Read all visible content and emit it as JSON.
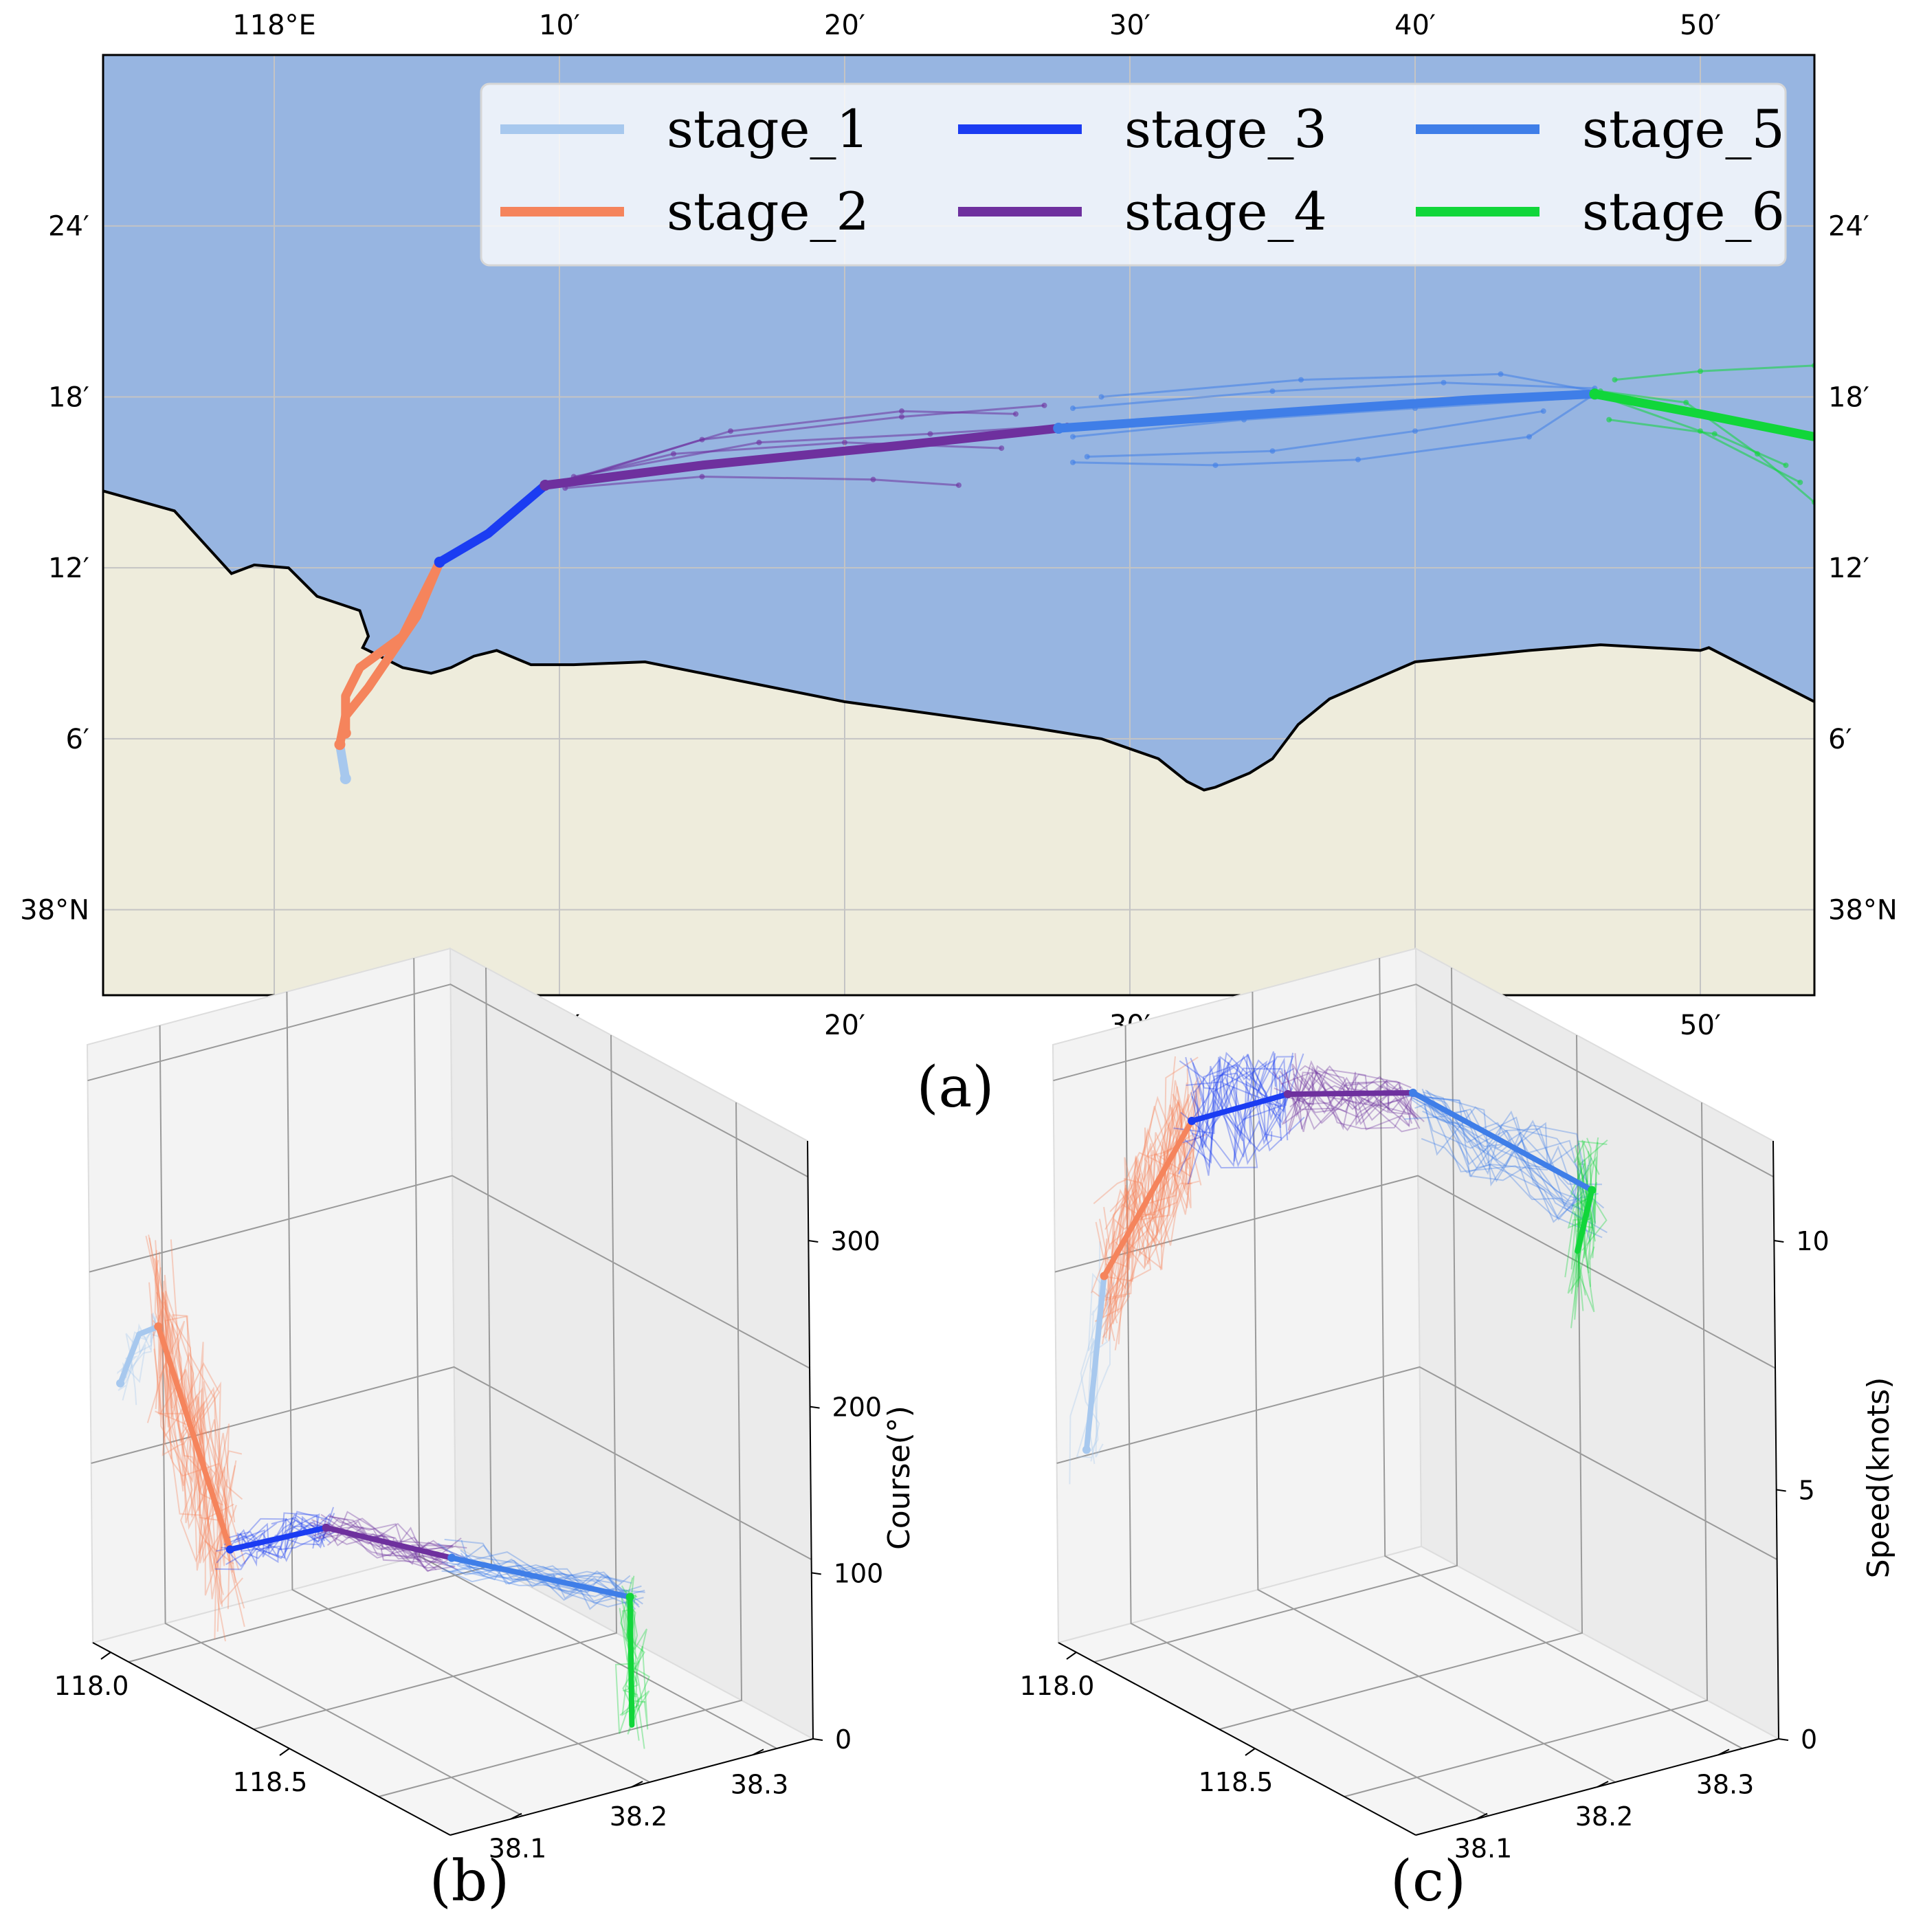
{
  "panels": {
    "a": {
      "caption": "(a)"
    },
    "b": {
      "caption": "(b)"
    },
    "c": {
      "caption": "(c)"
    }
  },
  "colors": {
    "stage_1": "#a7c8ee",
    "stage_2": "#f5845c",
    "stage_3": "#1b3cf2",
    "stage_4": "#6e309e",
    "stage_5": "#3f7ee8",
    "stage_6": "#11d63a",
    "sea": "#97b5e1",
    "land": "#eeecdc",
    "coast": "#000000"
  },
  "chart_data": [
    {
      "type": "line",
      "panel": "a",
      "kind": "map",
      "x_ticks_top": [
        "118°E",
        "10′",
        "20′",
        "30′",
        "40′",
        "50′"
      ],
      "x_ticks_bottom": [
        "118°E",
        "10′",
        "20′",
        "30′",
        "40′",
        "50′"
      ],
      "y_ticks_left": [
        "24′",
        "18′",
        "12′",
        "6′",
        "38°N"
      ],
      "y_ticks_right": [
        "24′",
        "18′",
        "12′",
        "6′",
        "38°N"
      ],
      "x_tick_values": [
        0,
        10,
        20,
        30,
        40,
        50
      ],
      "y_tick_values": [
        24,
        18,
        12,
        6,
        0
      ],
      "xlim": [
        -6.0,
        54.0
      ],
      "ylim": [
        -3.0,
        30.0
      ],
      "units": "arc-minutes east of 118°E / north of 38°N",
      "legend": {
        "placement": "top-right",
        "entries": [
          "stage_1",
          "stage_2",
          "stage_3",
          "stage_4",
          "stage_5",
          "stage_6"
        ]
      },
      "coastline": [
        [
          -6.0,
          14.7
        ],
        [
          -3.5,
          14.0
        ],
        [
          -1.5,
          11.8
        ],
        [
          -0.7,
          12.1
        ],
        [
          0.5,
          12.0
        ],
        [
          1.5,
          11.0
        ],
        [
          3.0,
          10.5
        ],
        [
          3.3,
          9.6
        ],
        [
          3.1,
          9.2
        ],
        [
          4.5,
          8.5
        ],
        [
          5.5,
          8.3
        ],
        [
          6.2,
          8.5
        ],
        [
          7.0,
          8.9
        ],
        [
          7.8,
          9.1
        ],
        [
          9.0,
          8.6
        ],
        [
          10.5,
          8.6
        ],
        [
          13.0,
          8.7
        ],
        [
          20.0,
          7.3
        ],
        [
          26.5,
          6.4
        ],
        [
          29.0,
          6.0
        ],
        [
          31.0,
          5.3
        ],
        [
          32.0,
          4.5
        ],
        [
          32.6,
          4.2
        ],
        [
          33.0,
          4.3
        ],
        [
          34.2,
          4.8
        ],
        [
          35.0,
          5.3
        ],
        [
          35.9,
          6.5
        ],
        [
          37.0,
          7.4
        ],
        [
          40.0,
          8.7
        ],
        [
          44.0,
          9.1
        ],
        [
          46.5,
          9.3
        ],
        [
          50.0,
          9.1
        ],
        [
          50.3,
          9.2
        ],
        [
          54.0,
          7.3
        ]
      ],
      "series": [
        {
          "name": "stage_1",
          "points": [
            [
              2.5,
              4.6
            ],
            [
              2.4,
              5.2
            ],
            [
              2.3,
              5.8
            ]
          ]
        },
        {
          "name": "stage_2",
          "points": [
            [
              2.3,
              5.8
            ],
            [
              2.5,
              6.8
            ],
            [
              3.3,
              7.8
            ],
            [
              5.0,
              10.3
            ],
            [
              5.8,
              12.2
            ]
          ]
        },
        {
          "name": "stage_2",
          "points": [
            [
              2.5,
              6.2
            ],
            [
              2.5,
              7.5
            ],
            [
              3.0,
              8.5
            ],
            [
              4.5,
              9.6
            ],
            [
              5.8,
              12.2
            ]
          ]
        },
        {
          "name": "stage_3",
          "points": [
            [
              5.8,
              12.2
            ],
            [
              7.5,
              13.2
            ],
            [
              9.5,
              14.9
            ]
          ]
        },
        {
          "name": "stage_4",
          "points": [
            [
              9.5,
              14.9
            ],
            [
              15.0,
              15.6
            ],
            [
              22.0,
              16.3
            ],
            [
              27.5,
              16.9
            ]
          ]
        },
        {
          "name": "stage_5",
          "points": [
            [
              27.5,
              16.9
            ],
            [
              36.0,
              17.5
            ],
            [
              42.0,
              17.9
            ],
            [
              46.3,
              18.1
            ]
          ]
        },
        {
          "name": "stage_6",
          "points": [
            [
              46.3,
              18.1
            ],
            [
              50.0,
              17.4
            ],
            [
              54.0,
              16.6
            ]
          ]
        }
      ],
      "faint_tracks": [
        {
          "name": "stage_4",
          "points": [
            [
              9.8,
              14.9
            ],
            [
              15.0,
              16.5
            ],
            [
              22.0,
              17.3
            ],
            [
              27.0,
              17.7
            ]
          ]
        },
        {
          "name": "stage_4",
          "points": [
            [
              9.8,
              15.0
            ],
            [
              14.0,
              16.0
            ],
            [
              20.0,
              16.4
            ],
            [
              25.5,
              16.2
            ]
          ]
        },
        {
          "name": "stage_4",
          "points": [
            [
              10.0,
              15.0
            ],
            [
              16.0,
              16.8
            ],
            [
              22.0,
              17.5
            ],
            [
              26.0,
              17.4
            ]
          ]
        },
        {
          "name": "stage_4",
          "points": [
            [
              10.2,
              14.8
            ],
            [
              15.0,
              15.2
            ],
            [
              21.0,
              15.1
            ],
            [
              24.0,
              14.9
            ]
          ]
        },
        {
          "name": "stage_4",
          "points": [
            [
              10.5,
              15.2
            ],
            [
              17.0,
              16.4
            ],
            [
              23.0,
              16.7
            ],
            [
              27.8,
              17.0
            ]
          ]
        },
        {
          "name": "stage_5",
          "points": [
            [
              28.0,
              17.6
            ],
            [
              35.0,
              18.2
            ],
            [
              41.0,
              18.5
            ],
            [
              46.3,
              18.3
            ]
          ]
        },
        {
          "name": "stage_5",
          "points": [
            [
              28.0,
              15.7
            ],
            [
              33.0,
              15.6
            ],
            [
              38.0,
              15.8
            ],
            [
              44.0,
              16.6
            ],
            [
              46.3,
              18.1
            ]
          ]
        },
        {
          "name": "stage_5",
          "points": [
            [
              28.0,
              16.6
            ],
            [
              34.0,
              17.2
            ],
            [
              40.0,
              17.6
            ],
            [
              46.3,
              18.0
            ]
          ]
        },
        {
          "name": "stage_5",
          "points": [
            [
              29.0,
              18.0
            ],
            [
              36.0,
              18.6
            ],
            [
              43.0,
              18.8
            ],
            [
              46.3,
              18.2
            ]
          ]
        },
        {
          "name": "stage_5",
          "points": [
            [
              28.5,
              15.9
            ],
            [
              35.0,
              16.1
            ],
            [
              40.0,
              16.8
            ],
            [
              44.5,
              17.5
            ]
          ]
        },
        {
          "name": "stage_6",
          "points": [
            [
              46.3,
              18.1
            ],
            [
              50.0,
              16.8
            ],
            [
              53.5,
              15.0
            ]
          ]
        },
        {
          "name": "stage_6",
          "points": [
            [
              46.5,
              18.2
            ],
            [
              49.5,
              17.8
            ],
            [
              52.0,
              16.0
            ],
            [
              54.0,
              14.3
            ]
          ]
        },
        {
          "name": "stage_6",
          "points": [
            [
              47.0,
              18.6
            ],
            [
              50.0,
              18.9
            ],
            [
              54.0,
              19.1
            ]
          ]
        },
        {
          "name": "stage_6",
          "points": [
            [
              46.8,
              17.2
            ],
            [
              50.5,
              16.7
            ],
            [
              53.0,
              15.6
            ]
          ]
        }
      ]
    },
    {
      "type": "line",
      "panel": "b",
      "kind": "3d",
      "xlabel": "",
      "ylabel": "",
      "zlabel": "Course(°)",
      "x_ticks": [
        "118.0",
        "118.5"
      ],
      "x_tick_values": [
        118.0,
        118.5
      ],
      "y_ticks": [
        "38.1",
        "38.2",
        "38.3"
      ],
      "y_tick_values": [
        38.1,
        38.2,
        38.3
      ],
      "z_ticks": [
        "0",
        "100",
        "200",
        "300"
      ],
      "z_tick_values": [
        0,
        100,
        200,
        300
      ],
      "xlim": [
        117.95,
        118.95
      ],
      "ylim": [
        38.05,
        38.35
      ],
      "zlim": [
        0,
        360
      ],
      "series": [
        {
          "name": "stage_1",
          "points": [
            [
              118.0,
              38.06,
              160
            ],
            [
              118.02,
              38.07,
              190
            ],
            [
              118.04,
              38.08,
              195
            ]
          ]
        },
        {
          "name": "stage_2",
          "points": [
            [
              118.04,
              38.08,
              195
            ],
            [
              118.1,
              38.12,
              60
            ]
          ]
        },
        {
          "name": "stage_3",
          "points": [
            [
              118.1,
              38.12,
              60
            ],
            [
              118.2,
              38.17,
              75
            ]
          ]
        },
        {
          "name": "stage_4",
          "points": [
            [
              118.2,
              38.17,
              75
            ],
            [
              118.45,
              38.2,
              80
            ]
          ]
        },
        {
          "name": "stage_5",
          "points": [
            [
              118.45,
              38.2,
              80
            ],
            [
              118.78,
              38.25,
              85
            ]
          ]
        },
        {
          "name": "stage_6",
          "points": [
            [
              118.78,
              38.25,
              85
            ],
            [
              118.85,
              38.23,
              20
            ]
          ]
        }
      ]
    },
    {
      "type": "line",
      "panel": "c",
      "kind": "3d",
      "xlabel": "",
      "ylabel": "",
      "zlabel": "Speed(knots)",
      "x_ticks": [
        "118.0",
        "118.5"
      ],
      "x_tick_values": [
        118.0,
        118.5
      ],
      "y_ticks": [
        "38.1",
        "38.2",
        "38.3"
      ],
      "y_tick_values": [
        38.1,
        38.2,
        38.3
      ],
      "z_ticks": [
        "0",
        "5",
        "10"
      ],
      "z_tick_values": [
        0,
        5,
        10
      ],
      "xlim": [
        117.95,
        118.95
      ],
      "ylim": [
        38.05,
        38.35
      ],
      "zlim": [
        0,
        12
      ],
      "series": [
        {
          "name": "stage_1",
          "points": [
            [
              118.0,
              38.06,
              4.0
            ],
            [
              118.02,
              38.07,
              7.5
            ]
          ]
        },
        {
          "name": "stage_2",
          "points": [
            [
              118.02,
              38.07,
              7.5
            ],
            [
              118.1,
              38.12,
              10.6
            ]
          ]
        },
        {
          "name": "stage_3",
          "points": [
            [
              118.1,
              38.12,
              10.6
            ],
            [
              118.2,
              38.17,
              11.2
            ]
          ]
        },
        {
          "name": "stage_4",
          "points": [
            [
              118.2,
              38.17,
              11.2
            ],
            [
              118.45,
              38.2,
              12.0
            ]
          ]
        },
        {
          "name": "stage_5",
          "points": [
            [
              118.45,
              38.2,
              12.0
            ],
            [
              118.78,
              38.25,
              11.0
            ]
          ]
        },
        {
          "name": "stage_6",
          "points": [
            [
              118.78,
              38.25,
              11.0
            ],
            [
              118.84,
              38.22,
              10.2
            ]
          ]
        }
      ]
    }
  ]
}
